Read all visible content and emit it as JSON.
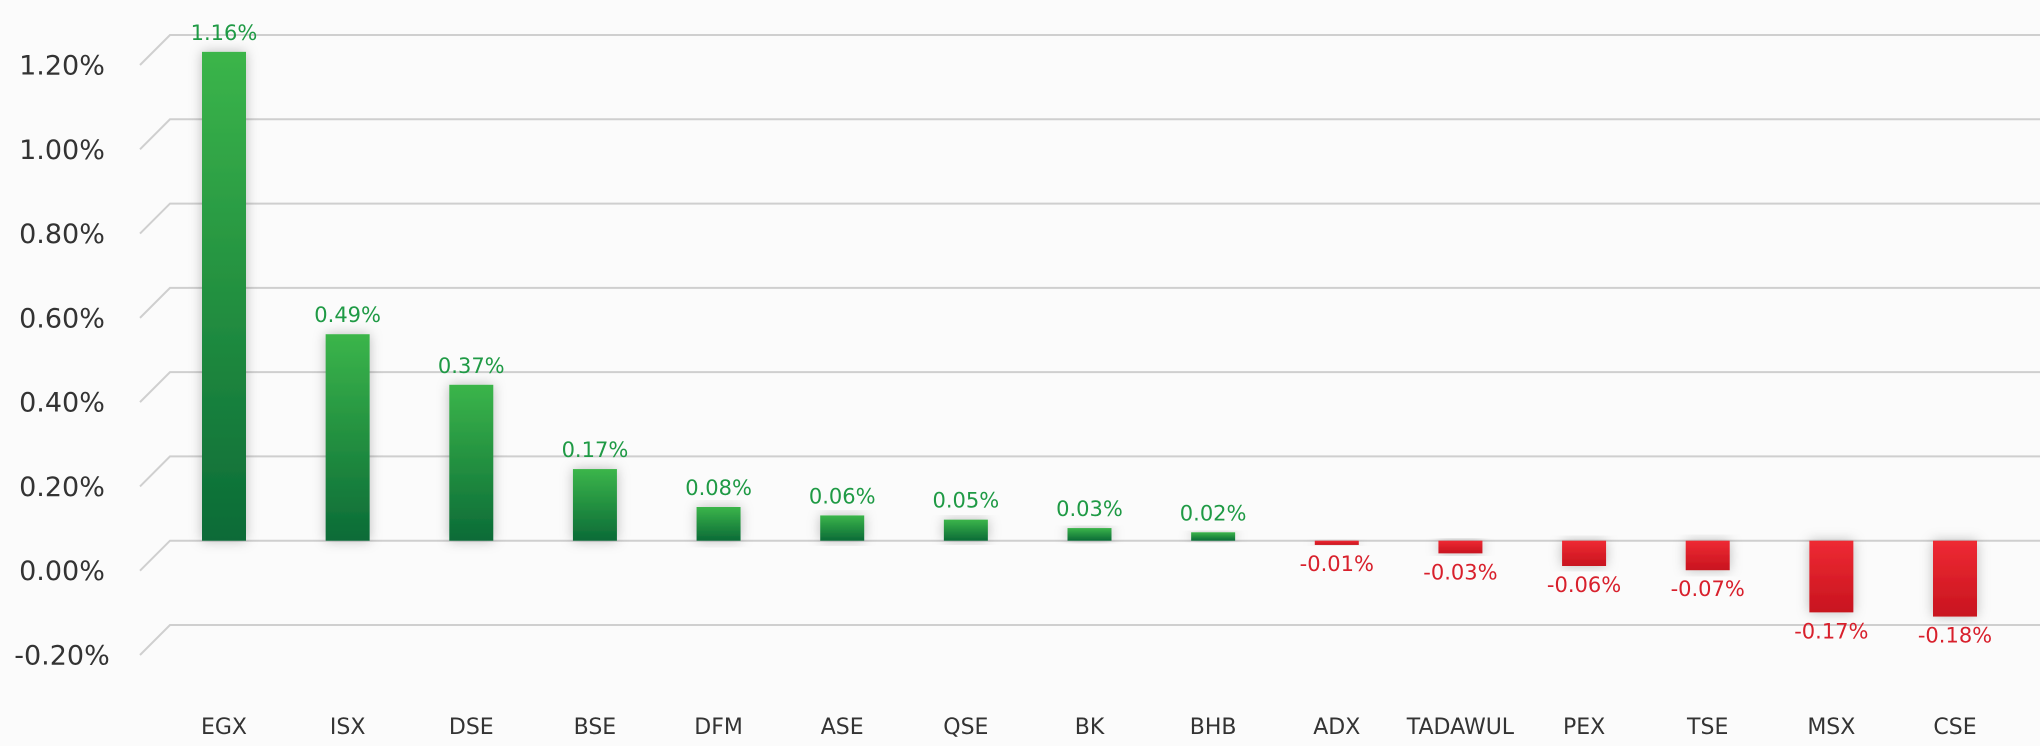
{
  "chart_data": {
    "type": "bar",
    "categories": [
      "EGX",
      "ISX",
      "DSE",
      "BSE",
      "DFM",
      "ASE",
      "QSE",
      "BK",
      "BHB",
      "ADX",
      "TADAWUL",
      "PEX",
      "TSE",
      "MSX",
      "CSE"
    ],
    "values": [
      1.16,
      0.49,
      0.37,
      0.17,
      0.08,
      0.06,
      0.05,
      0.03,
      0.02,
      -0.01,
      -0.03,
      -0.06,
      -0.07,
      -0.17,
      -0.18
    ],
    "value_labels": [
      "1.16%",
      "0.49%",
      "0.37%",
      "0.17%",
      "0.08%",
      "0.06%",
      "0.05%",
      "0.03%",
      "0.02%",
      "-0.01%",
      "-0.03%",
      "-0.06%",
      "-0.07%",
      "-0.17%",
      "-0.18%"
    ],
    "positive_color": "#1f9a45",
    "negative_color": "#d8202c",
    "ylim": [
      -0.2,
      1.2
    ],
    "yticks": [
      {
        "value": -0.2,
        "label": "-0.20%"
      },
      {
        "value": 0,
        "label": "0.00%"
      },
      {
        "value": 0.2,
        "label": "0.20%"
      },
      {
        "value": 0.4,
        "label": "0.40%"
      },
      {
        "value": 0.6,
        "label": "0.60%"
      },
      {
        "value": 0.8,
        "label": "0.80%"
      },
      {
        "value": 1.0,
        "label": "1.00%"
      },
      {
        "value": 1.2,
        "label": "1.20%"
      }
    ],
    "grid": true
  }
}
